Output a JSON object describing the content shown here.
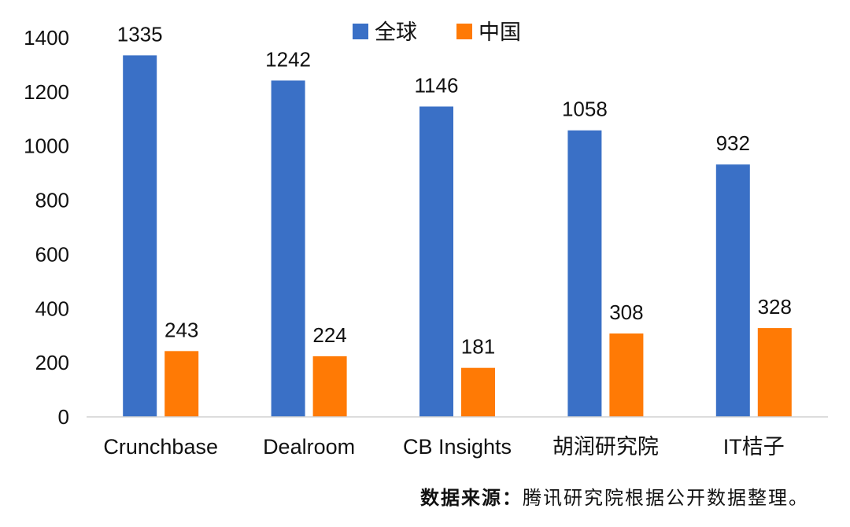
{
  "chart_data": {
    "type": "bar",
    "title": "",
    "xlabel": "",
    "ylabel": "",
    "categories": [
      "Crunchbase",
      "Dealroom",
      "CB Insights",
      "胡润研究院",
      "IT桔子"
    ],
    "series": [
      {
        "name": "全球",
        "values": [
          1335,
          1242,
          1146,
          1058,
          932
        ],
        "color": "#3A70C6"
      },
      {
        "name": "中国",
        "values": [
          243,
          224,
          181,
          308,
          328
        ],
        "color": "#FF7A05"
      }
    ],
    "ylim": [
      0,
      1400
    ],
    "yticks": [
      0,
      200,
      400,
      600,
      800,
      1000,
      1200,
      1400
    ],
    "legend": "top-center",
    "grid": false
  },
  "source": {
    "label": "数据来源：",
    "text": "腾讯研究院根据公开数据整理。"
  }
}
